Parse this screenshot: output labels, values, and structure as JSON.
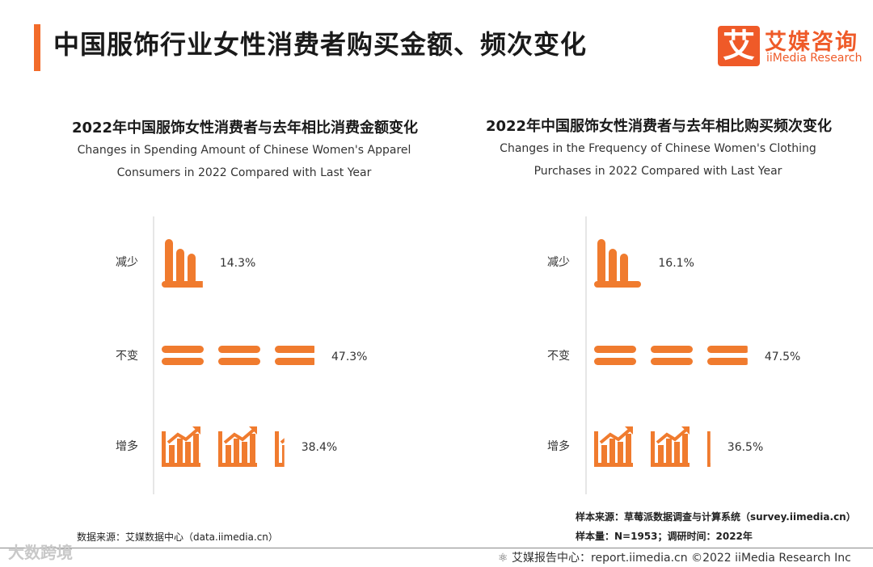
{
  "page_title": "中国服饰行业女性消费者购买金额、频次变化",
  "logo": {
    "mark": "艾",
    "cn": "艾媒咨询",
    "en": "iiMedia Research"
  },
  "chart_data": [
    {
      "type": "bar",
      "title": "2022年中国服饰女性消费者与去年相比消费金额变化",
      "subtitle_line1": "Changes in Spending Amount of Chinese Women's Apparel",
      "subtitle_line2": "Consumers in 2022 Compared with Last Year",
      "categories": [
        "减少",
        "不变",
        "增多"
      ],
      "values": [
        14.3,
        47.3,
        38.4
      ],
      "value_labels": [
        "14.3%",
        "47.3%",
        "38.4%"
      ],
      "icons": [
        "bar-chart-decrease-icon",
        "equal-sign-icon",
        "bar-chart-increase-icon"
      ],
      "unit": "%",
      "xlim": [
        0,
        50
      ]
    },
    {
      "type": "bar",
      "title": "2022年中国服饰女性消费者与去年相比购买频次变化",
      "subtitle_line1": "Changes in the Frequency of Chinese Women's Clothing",
      "subtitle_line2": "Purchases in 2022 Compared with Last Year",
      "categories": [
        "减少",
        "不变",
        "增多"
      ],
      "values": [
        16.1,
        47.5,
        36.5
      ],
      "value_labels": [
        "16.1%",
        "47.5%",
        "36.5%"
      ],
      "icons": [
        "bar-chart-decrease-icon",
        "equal-sign-icon",
        "bar-chart-increase-icon"
      ],
      "unit": "%",
      "xlim": [
        0,
        50
      ]
    }
  ],
  "colors": {
    "accent": "#f07b2e",
    "brand": "#ef5a28"
  },
  "footer": {
    "data_source": "数据来源：艾媒数据中心（data.iimedia.cn）",
    "sample_source": "样本来源：草莓派数据调查与计算系统（survey.iimedia.cn）",
    "sample_size": "样本量：N=1953；调研时间：2022年",
    "report_center": "艾媒报告中心：report.iimedia.cn  ©2022  iiMedia Research  Inc",
    "watermark": "大数跨境"
  }
}
